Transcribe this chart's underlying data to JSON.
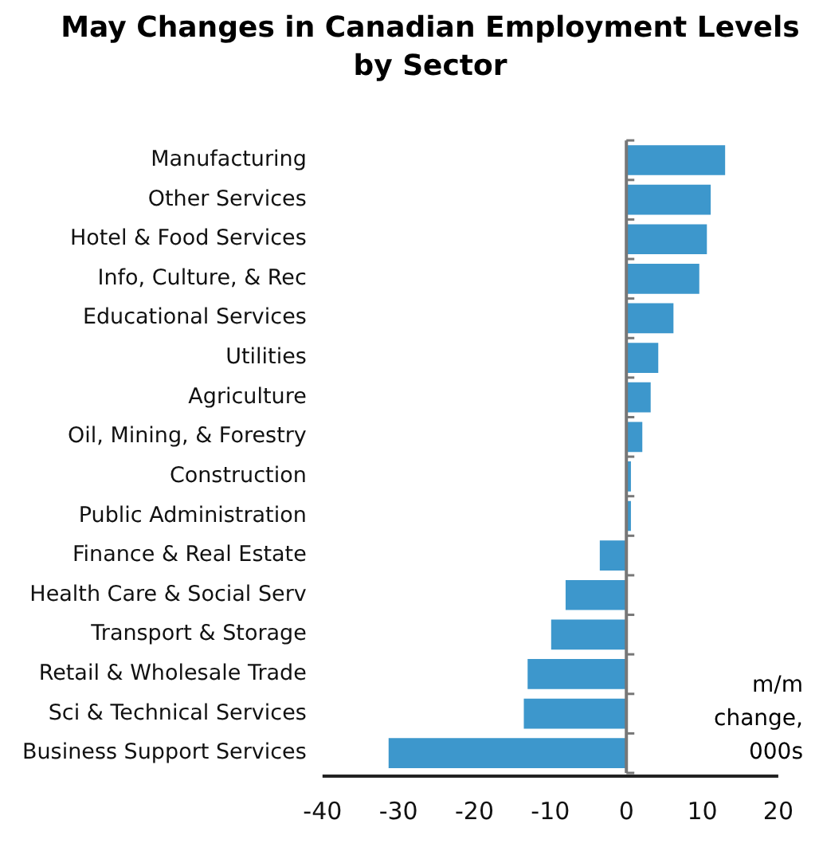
{
  "chart_data": {
    "type": "bar",
    "orientation": "horizontal",
    "title": "May Changes in Canadian Employment Levels by Sector",
    "categories": [
      "Manufacturing",
      "Other Services",
      "Hotel & Food Services",
      "Info, Culture, & Rec",
      "Educational Services",
      "Utilities",
      "Agriculture",
      "Oil, Mining, & Forestry",
      "Construction",
      "Public Administration",
      "Finance & Real Estate",
      "Health Care & Social Serv",
      "Transport & Storage",
      "Retail & Wholesale Trade",
      "Sci & Technical Services",
      "Business Support Services"
    ],
    "values": [
      13.0,
      11.1,
      10.6,
      9.6,
      6.2,
      4.2,
      3.2,
      2.1,
      0.6,
      0.6,
      -3.5,
      -8.0,
      -9.9,
      -13.0,
      -13.5,
      -31.3
    ],
    "color": "#3d97cc",
    "xlim": [
      -40,
      20
    ],
    "xticks": [
      -40,
      -30,
      -20,
      -10,
      0,
      10,
      20
    ],
    "annotations": [
      "m/m change, 000s"
    ],
    "ref_lines": [
      {
        "axis": "x",
        "value": 0,
        "color": "#777777"
      }
    ],
    "grid": false,
    "legend": false
  }
}
